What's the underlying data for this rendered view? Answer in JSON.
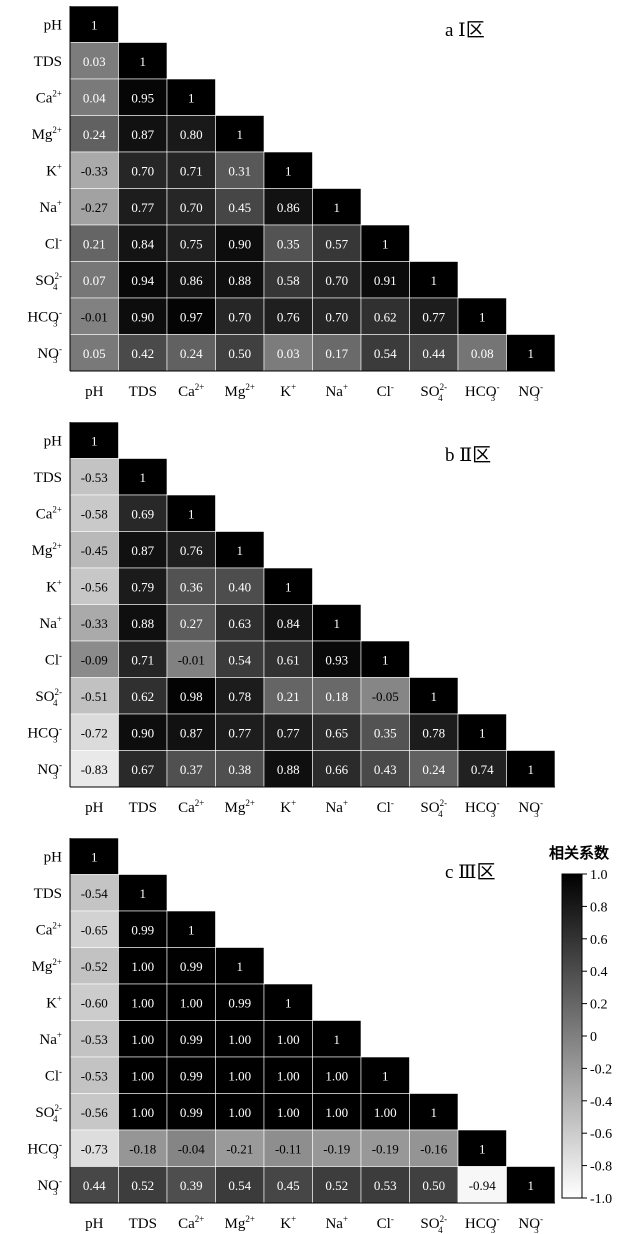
{
  "chart_data": [
    {
      "type": "heatmap",
      "title": "a Ⅰ区",
      "variables": [
        "pH",
        "TDS",
        "Ca2+",
        "Mg2+",
        "K+",
        "Na+",
        "Cl-",
        "SO42-",
        "HCO3-",
        "NO3-"
      ],
      "labels": [
        {
          "base": "pH",
          "sup": "",
          "sub": ""
        },
        {
          "base": "TDS",
          "sup": "",
          "sub": ""
        },
        {
          "base": "Ca",
          "sup": "2+",
          "sub": ""
        },
        {
          "base": "Mg",
          "sup": "2+",
          "sub": ""
        },
        {
          "base": "K",
          "sup": "+",
          "sub": ""
        },
        {
          "base": "Na",
          "sup": "+",
          "sub": ""
        },
        {
          "base": "Cl",
          "sup": "-",
          "sub": ""
        },
        {
          "base": "SO",
          "sup": "2-",
          "sub": "4"
        },
        {
          "base": "HCO",
          "sup": "-",
          "sub": "3"
        },
        {
          "base": "NO",
          "sup": "-",
          "sub": "3"
        }
      ],
      "cells": [
        [
          "1"
        ],
        [
          "0.03",
          "1"
        ],
        [
          "0.04",
          "0.95",
          "1"
        ],
        [
          "0.24",
          "0.87",
          "0.80",
          "1"
        ],
        [
          "-0.33",
          "0.70",
          "0.71",
          "0.31",
          "1"
        ],
        [
          "-0.27",
          "0.77",
          "0.70",
          "0.45",
          "0.86",
          "1"
        ],
        [
          "0.21",
          "0.84",
          "0.75",
          "0.90",
          "0.35",
          "0.57",
          "1"
        ],
        [
          "0.07",
          "0.94",
          "0.86",
          "0.88",
          "0.58",
          "0.70",
          "0.91",
          "1"
        ],
        [
          "-0.01",
          "0.90",
          "0.97",
          "0.70",
          "0.76",
          "0.70",
          "0.62",
          "0.77",
          "1"
        ],
        [
          "0.05",
          "0.42",
          "0.24",
          "0.50",
          "0.03",
          "0.17",
          "0.54",
          "0.44",
          "0.08",
          "1"
        ]
      ]
    },
    {
      "type": "heatmap",
      "title": "b Ⅱ区",
      "variables": [
        "pH",
        "TDS",
        "Ca2+",
        "Mg2+",
        "K+",
        "Na+",
        "Cl-",
        "SO42-",
        "HCO3-",
        "NO3-"
      ],
      "labels": [
        {
          "base": "pH",
          "sup": "",
          "sub": ""
        },
        {
          "base": "TDS",
          "sup": "",
          "sub": ""
        },
        {
          "base": "Ca",
          "sup": "2+",
          "sub": ""
        },
        {
          "base": "Mg",
          "sup": "2+",
          "sub": ""
        },
        {
          "base": "K",
          "sup": "+",
          "sub": ""
        },
        {
          "base": "Na",
          "sup": "+",
          "sub": ""
        },
        {
          "base": "Cl",
          "sup": "-",
          "sub": ""
        },
        {
          "base": "SO",
          "sup": "2-",
          "sub": "4"
        },
        {
          "base": "HCO",
          "sup": "-",
          "sub": "3"
        },
        {
          "base": "NO",
          "sup": "-",
          "sub": "3"
        }
      ],
      "cells": [
        [
          "1"
        ],
        [
          "-0.53",
          "1"
        ],
        [
          "-0.58",
          "0.69",
          "1"
        ],
        [
          "-0.45",
          "0.87",
          "0.76",
          "1"
        ],
        [
          "-0.56",
          "0.79",
          "0.36",
          "0.40",
          "1"
        ],
        [
          "-0.33",
          "0.88",
          "0.27",
          "0.63",
          "0.84",
          "1"
        ],
        [
          "-0.09",
          "0.71",
          "-0.01",
          "0.54",
          "0.61",
          "0.93",
          "1"
        ],
        [
          "-0.51",
          "0.62",
          "0.98",
          "0.78",
          "0.21",
          "0.18",
          "-0.05",
          "1"
        ],
        [
          "-0.72",
          "0.90",
          "0.87",
          "0.77",
          "0.77",
          "0.65",
          "0.35",
          "0.78",
          "1"
        ],
        [
          "-0.83",
          "0.67",
          "0.37",
          "0.38",
          "0.88",
          "0.66",
          "0.43",
          "0.24",
          "0.74",
          "1"
        ]
      ]
    },
    {
      "type": "heatmap",
      "title": "c Ⅲ区",
      "variables": [
        "pH",
        "TDS",
        "Ca2+",
        "Mg2+",
        "K+",
        "Na+",
        "Cl-",
        "SO42-",
        "HCO3-",
        "NO3-"
      ],
      "labels": [
        {
          "base": "pH",
          "sup": "",
          "sub": ""
        },
        {
          "base": "TDS",
          "sup": "",
          "sub": ""
        },
        {
          "base": "Ca",
          "sup": "2+",
          "sub": ""
        },
        {
          "base": "Mg",
          "sup": "2+",
          "sub": ""
        },
        {
          "base": "K",
          "sup": "+",
          "sub": ""
        },
        {
          "base": "Na",
          "sup": "+",
          "sub": ""
        },
        {
          "base": "Cl",
          "sup": "-",
          "sub": ""
        },
        {
          "base": "SO",
          "sup": "2-",
          "sub": "4"
        },
        {
          "base": "HCO",
          "sup": "-",
          "sub": "3"
        },
        {
          "base": "NO",
          "sup": "-",
          "sub": "3"
        }
      ],
      "cells": [
        [
          "1"
        ],
        [
          "-0.54",
          "1"
        ],
        [
          "-0.65",
          "0.99",
          "1"
        ],
        [
          "-0.52",
          "1.00",
          "0.99",
          "1"
        ],
        [
          "-0.60",
          "1.00",
          "1.00",
          "0.99",
          "1"
        ],
        [
          "-0.53",
          "1.00",
          "0.99",
          "1.00",
          "1.00",
          "1"
        ],
        [
          "-0.53",
          "1.00",
          "0.99",
          "1.00",
          "1.00",
          "1.00",
          "1"
        ],
        [
          "-0.56",
          "1.00",
          "0.99",
          "1.00",
          "1.00",
          "1.00",
          "1.00",
          "1"
        ],
        [
          "-0.73",
          "-0.18",
          "-0.04",
          "-0.21",
          "-0.11",
          "-0.19",
          "-0.19",
          "-0.16",
          "1"
        ],
        [
          "0.44",
          "0.52",
          "0.39",
          "0.54",
          "0.45",
          "0.52",
          "0.53",
          "0.50",
          "-0.94",
          "1"
        ]
      ]
    }
  ],
  "colorbar": {
    "title": "相关系数",
    "range": [
      -1.0,
      1.0
    ],
    "ticks": [
      "1.0",
      "0.8",
      "0.6",
      "0.4",
      "0.2",
      "0",
      "-0.2",
      "-0.4",
      "-0.6",
      "-0.8",
      "-1.0"
    ],
    "color_low": "#ffffff",
    "color_high": "#000000"
  }
}
